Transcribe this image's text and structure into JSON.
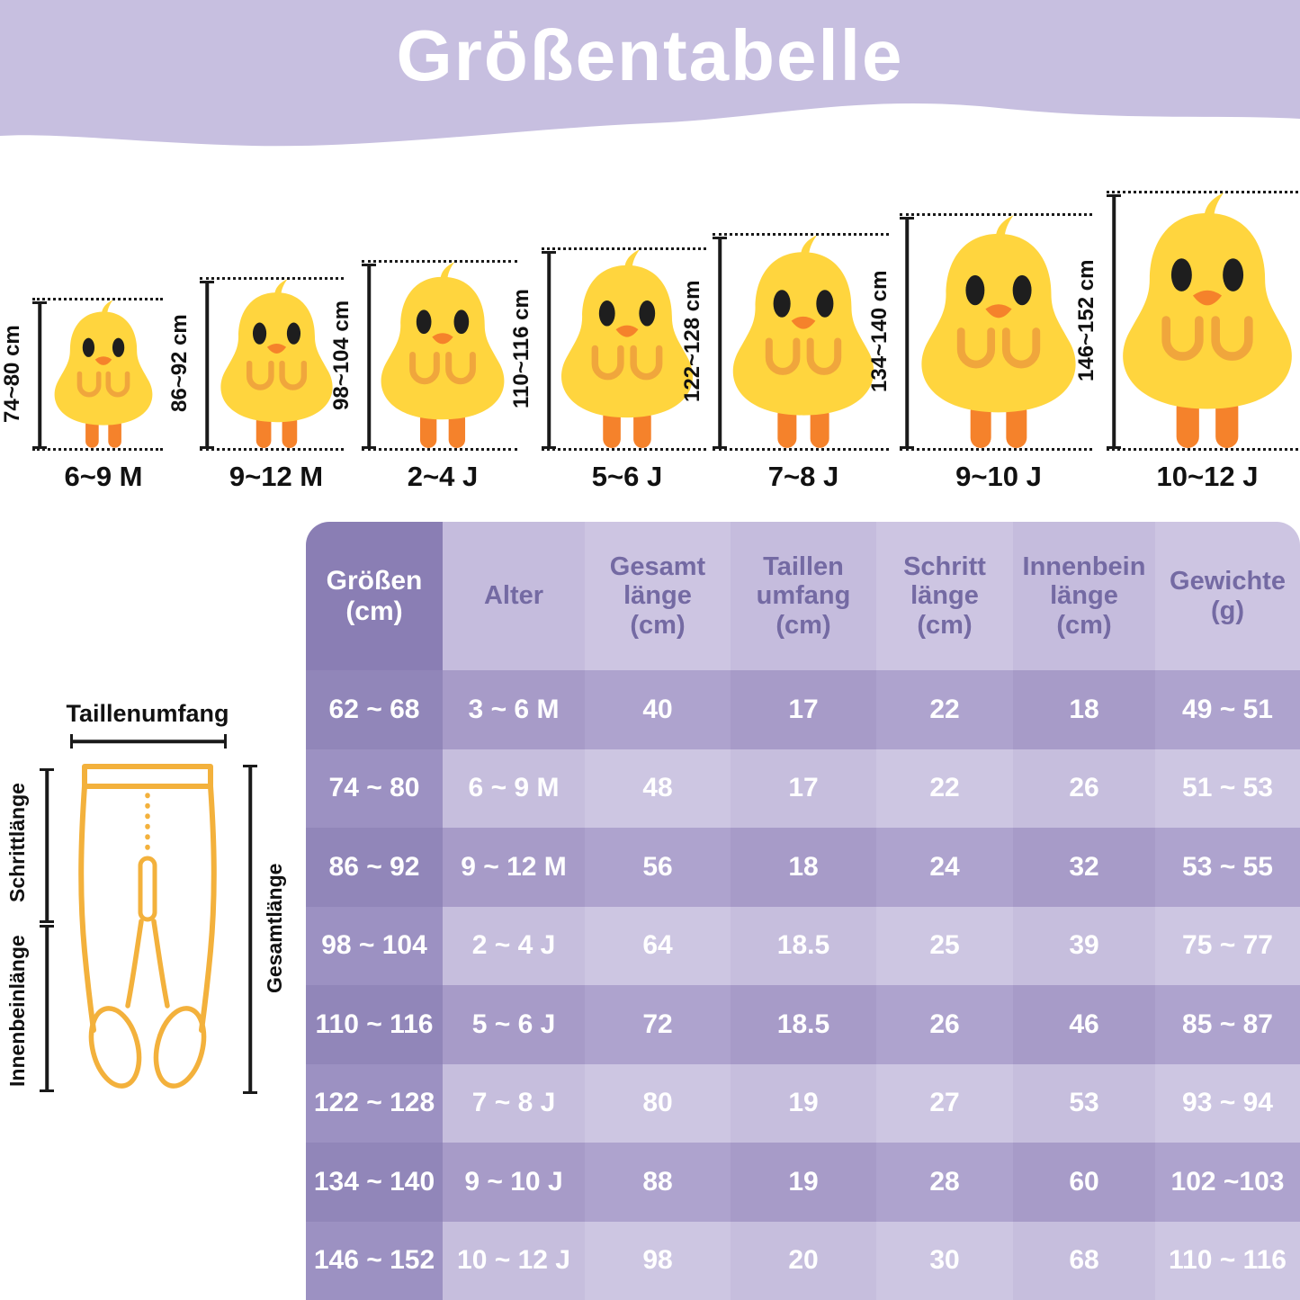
{
  "title": "Größentabelle",
  "colors": {
    "banner_purple": "#C7BFE0",
    "chick_yellow": "#FFD53E",
    "chick_orange": "#F5822B",
    "tights_outline": "#F3B13C",
    "table_header_dark": "#8A7EB4",
    "table_row_dark": "#A99CC9",
    "table_row_light": "#CBC3E1",
    "table_header_text": "#746AA3",
    "table_cell_text": "#FFFFFF"
  },
  "chicks": [
    {
      "height_label": "74~80 cm",
      "age_label": "6~9 M"
    },
    {
      "height_label": "86~92 cm",
      "age_label": "9~12 M"
    },
    {
      "height_label": "98~104 cm",
      "age_label": "2~4 J"
    },
    {
      "height_label": "110~116 cm",
      "age_label": "5~6 J"
    },
    {
      "height_label": "122~128 cm",
      "age_label": "7~8 J"
    },
    {
      "height_label": "134~140 cm",
      "age_label": "9~10 J"
    },
    {
      "height_label": "146~152 cm",
      "age_label": "10~12 J"
    }
  ],
  "diagram": {
    "top_label": "Taillenumfang",
    "left_top_label": "Schrittlänge",
    "left_bottom_label": "Innenbeinlänge",
    "right_label": "Gesamtlänge"
  },
  "table": {
    "headers": [
      "Größen\n(cm)",
      "Alter",
      "Gesamt\nlänge\n(cm)",
      "Taillen\numfang\n(cm)",
      "Schritt\nlänge\n(cm)",
      "Innenbein\nlänge\n(cm)",
      "Gewichte\n(g)"
    ],
    "rows": [
      [
        "62 ~ 68",
        "3 ~ 6 M",
        "40",
        "17",
        "22",
        "18",
        "49 ~ 51"
      ],
      [
        "74 ~ 80",
        "6 ~ 9 M",
        "48",
        "17",
        "22",
        "26",
        "51 ~ 53"
      ],
      [
        "86 ~ 92",
        "9 ~ 12 M",
        "56",
        "18",
        "24",
        "32",
        "53 ~ 55"
      ],
      [
        "98 ~ 104",
        "2 ~ 4 J",
        "64",
        "18.5",
        "25",
        "39",
        "75 ~ 77"
      ],
      [
        "110 ~ 116",
        "5 ~ 6 J",
        "72",
        "18.5",
        "26",
        "46",
        "85 ~ 87"
      ],
      [
        "122 ~ 128",
        "7 ~ 8 J",
        "80",
        "19",
        "27",
        "53",
        "93 ~ 94"
      ],
      [
        "134 ~ 140",
        "9 ~ 10 J",
        "88",
        "19",
        "28",
        "60",
        "102 ~103"
      ],
      [
        "146 ~ 152",
        "10 ~ 12 J",
        "98",
        "20",
        "30",
        "68",
        "110 ~ 116"
      ]
    ]
  },
  "chart_data": {
    "type": "table",
    "title": "Größentabelle",
    "columns": [
      "Größen (cm)",
      "Alter",
      "Gesamtlänge (cm)",
      "Taillenumfang (cm)",
      "Schrittlänge (cm)",
      "Innenbeinlänge (cm)",
      "Gewichte (g)"
    ],
    "rows": [
      [
        "62 ~ 68",
        "3 ~ 6 M",
        40,
        17,
        22,
        18,
        "49 ~ 51"
      ],
      [
        "74 ~ 80",
        "6 ~ 9 M",
        48,
        17,
        22,
        26,
        "51 ~ 53"
      ],
      [
        "86 ~ 92",
        "9 ~ 12 M",
        56,
        18,
        24,
        32,
        "53 ~ 55"
      ],
      [
        "98 ~ 104",
        "2 ~ 4 J",
        64,
        18.5,
        25,
        39,
        "75 ~ 77"
      ],
      [
        "110 ~ 116",
        "5 ~ 6 J",
        72,
        18.5,
        26,
        46,
        "85 ~ 87"
      ],
      [
        "122 ~ 128",
        "7 ~ 8 J",
        80,
        19,
        27,
        53,
        "93 ~ 94"
      ],
      [
        "134 ~ 140",
        "9 ~ 10 J",
        88,
        19,
        28,
        60,
        "102 ~103"
      ],
      [
        "146 ~ 152",
        "10 ~ 12 J",
        98,
        20,
        30,
        68,
        "110 ~ 116"
      ]
    ]
  }
}
